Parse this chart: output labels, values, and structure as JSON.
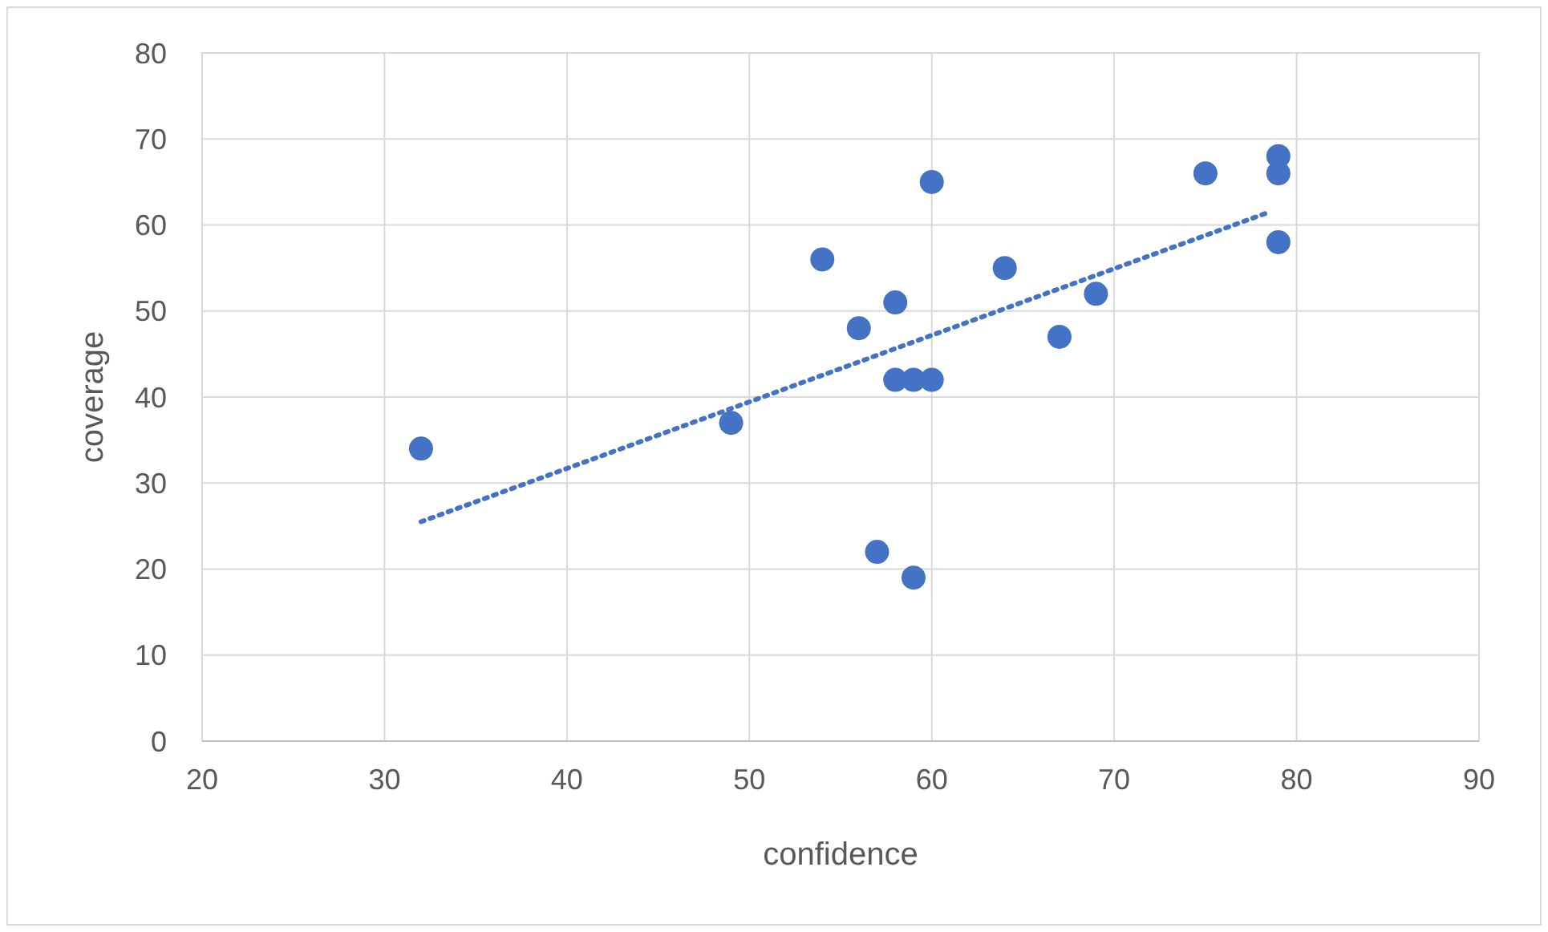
{
  "chart_data": {
    "type": "scatter",
    "xlabel": "confidence",
    "ylabel": "coverage",
    "xlim": [
      20,
      90
    ],
    "xticks": [
      20,
      30,
      40,
      50,
      60,
      70,
      80,
      90
    ],
    "ylim": [
      0,
      80
    ],
    "yticks": [
      0,
      10,
      20,
      30,
      40,
      50,
      60,
      70,
      80
    ],
    "grid": true,
    "marker": "circle",
    "series": [
      {
        "color": "#4472c4",
        "x": [
          32,
          49,
          54,
          56,
          57,
          58,
          58,
          59,
          59,
          60,
          60,
          64,
          67,
          69,
          75,
          79,
          79,
          79
        ],
        "values": [
          34,
          37,
          56,
          48,
          22,
          51,
          42,
          42,
          19,
          42,
          65,
          55,
          47,
          52,
          66,
          68,
          66,
          58
        ]
      },
      {
        "type": "line",
        "line_style": "dotted",
        "marker": "none",
        "color": "#4472c4",
        "x": [
          32,
          78.5
        ],
        "values": [
          25.5,
          61.5
        ]
      }
    ]
  }
}
